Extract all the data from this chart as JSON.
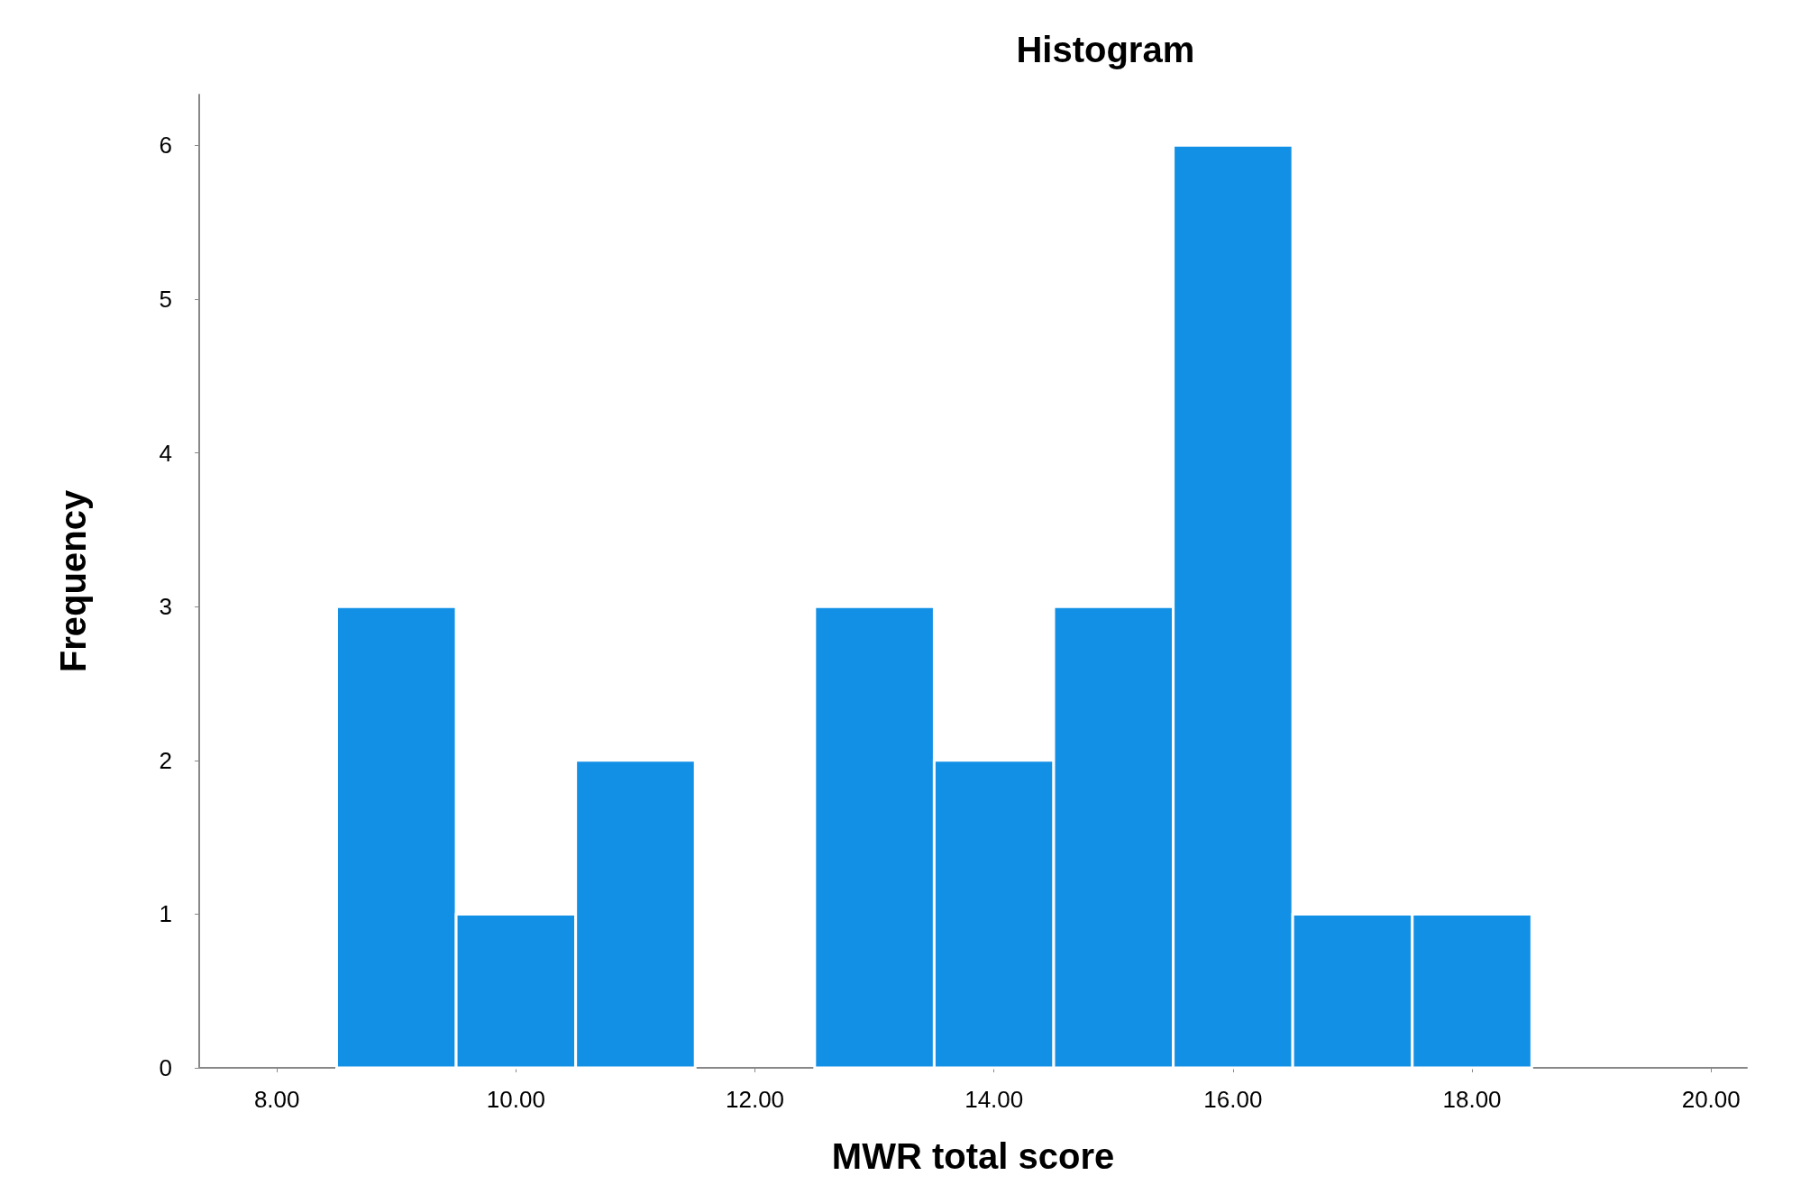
{
  "chart_data": {
    "type": "histogram",
    "title": "Histogram",
    "xlabel": "MWR total score",
    "ylabel": "Frequency",
    "bins": [
      8.5,
      9.5,
      10.5,
      11.5,
      12.5,
      13.5,
      14.5,
      15.5,
      16.5,
      17.5,
      18.5
    ],
    "values": [
      3,
      1,
      2,
      0,
      3,
      2,
      3,
      6,
      1,
      1
    ],
    "color": "#1290e6",
    "xlim": [
      7.35,
      20.3
    ],
    "xticks": [
      {
        "value": 8,
        "label": "8.00"
      },
      {
        "value": 10,
        "label": "10.00"
      },
      {
        "value": 12,
        "label": "12.00"
      },
      {
        "value": 14,
        "label": "14.00"
      },
      {
        "value": 16,
        "label": "16.00"
      },
      {
        "value": 18,
        "label": "18.00"
      },
      {
        "value": 20,
        "label": "20.00"
      }
    ],
    "ylim": [
      0,
      6.33
    ],
    "yticks": [
      0,
      1,
      2,
      3,
      4,
      5,
      6
    ],
    "grid": false
  }
}
